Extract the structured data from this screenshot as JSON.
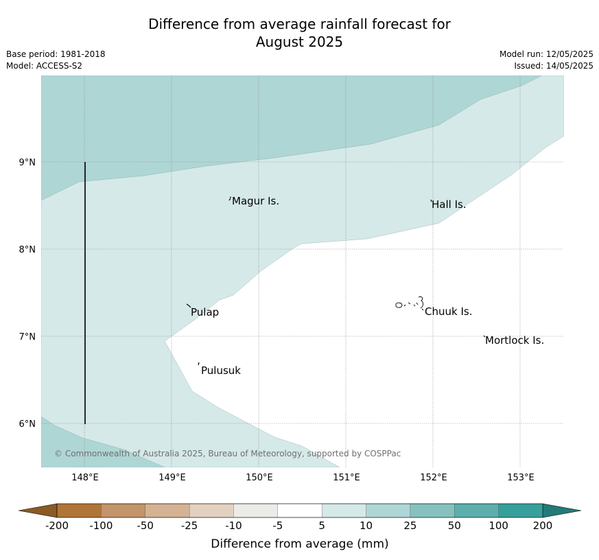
{
  "title_line1": "Difference from average rainfall forecast for",
  "title_line2": "August 2025",
  "meta_left": {
    "base_period": "Base period: 1981-2018",
    "model": "Model: ACCESS-S2"
  },
  "meta_right": {
    "model_run": "Model run: 12/05/2025",
    "issued": "Issued: 14/05/2025"
  },
  "map": {
    "lat_labels": [
      "9°N",
      "8°N",
      "7°N",
      "6°N"
    ],
    "lon_labels": [
      "148°E",
      "149°E",
      "150°E",
      "151°E",
      "152°E",
      "153°E"
    ],
    "places": [
      "Magur Is.",
      "Hall Is.",
      "Pulap",
      "Chuuk Is.",
      "Mortlock Is.",
      "Pulusuk"
    ],
    "credit": "© Commonwealth of Australia 2025, Bureau of Meteorology, supported by COSPPac"
  },
  "colorbar": {
    "ticks": [
      "-200",
      "-100",
      "-50",
      "-25",
      "-10",
      "-5",
      "5",
      "10",
      "25",
      "50",
      "100",
      "200"
    ],
    "label": "Difference from average (mm)",
    "colors": {
      "below_min": "#8c5a24",
      "bins": [
        "#b07538",
        "#c2956a",
        "#d3b393",
        "#e3d1c0",
        "#ecebe8",
        "#ffffff",
        "#d5e9e8",
        "#aed6d5",
        "#86c1bf",
        "#5dafad",
        "#37a09c"
      ],
      "above_max": "#237a78"
    }
  }
}
